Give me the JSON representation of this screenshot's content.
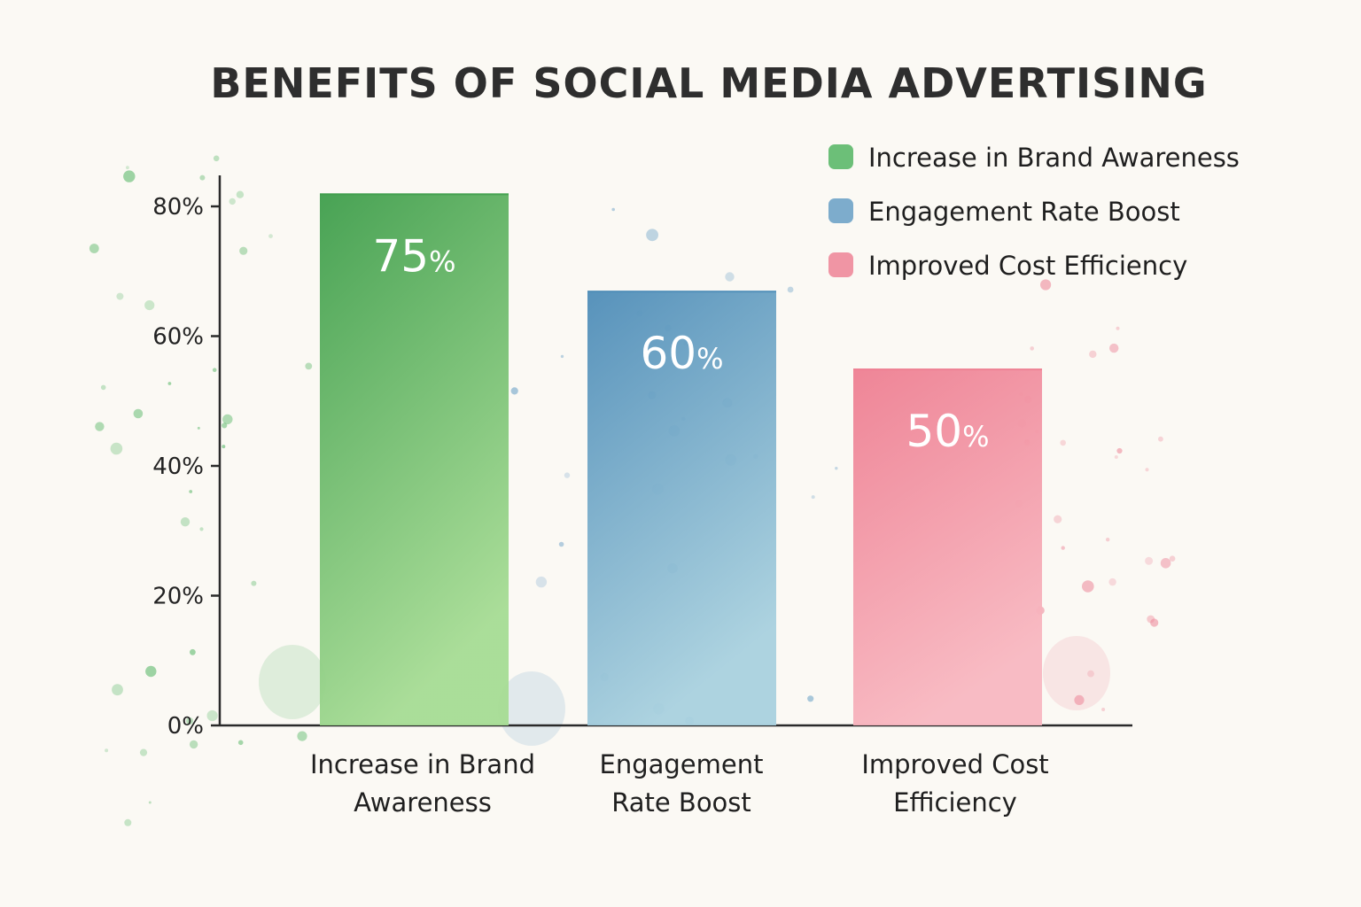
{
  "chart_data": {
    "type": "bar",
    "title": "BENEFITS OF SOCIAL MEDIA ADVERTISING",
    "categories": [
      [
        "Increase in Brand",
        "Awareness"
      ],
      [
        "Engagement",
        "Rate Boost"
      ],
      [
        "Improved Cost",
        "Efficiency"
      ]
    ],
    "values": [
      75,
      60,
      50
    ],
    "bar_heights": [
      82,
      67,
      55
    ],
    "data_labels": [
      "75",
      "60",
      "50"
    ],
    "data_label_suffix": "%",
    "ylim": [
      0,
      80
    ],
    "yticks": [
      0,
      20,
      40,
      60,
      80
    ],
    "ytick_labels": [
      "0%",
      "20%",
      "40%",
      "60%",
      "80%"
    ],
    "xlabel": "",
    "ylabel": "",
    "grid": false,
    "legend_position": "top-right",
    "legend": [
      {
        "label": "Increase in Brand Awareness",
        "color": "#5cb86a"
      },
      {
        "label": "Engagement Rate Boost",
        "color": "#6fa3c8"
      },
      {
        "label": "Improved Cost Efficiency",
        "color": "#ee8a9b"
      }
    ],
    "colors": [
      {
        "top": "#3f9e4c",
        "bottom": "#a6dc94"
      },
      {
        "top": "#4f8db8",
        "bottom": "#a9d1df"
      },
      {
        "top": "#ee7f92",
        "bottom": "#f8b8c1"
      }
    ]
  }
}
